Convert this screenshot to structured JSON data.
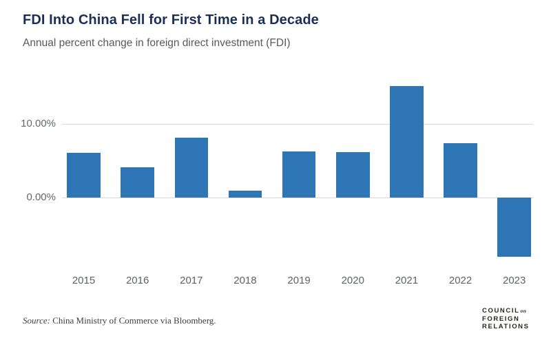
{
  "header": {
    "title": "FDI Into China Fell for First Time in a Decade",
    "subtitle": "Annual percent change in foreign direct investment (FDI)"
  },
  "chart_data": {
    "type": "bar",
    "title": "FDI Into China Fell for First Time in a Decade",
    "subtitle": "Annual percent change in foreign direct investment (FDI)",
    "categories": [
      "2015",
      "2016",
      "2017",
      "2018",
      "2019",
      "2020",
      "2021",
      "2022",
      "2023"
    ],
    "values": [
      6.1,
      4.1,
      8.1,
      0.9,
      6.3,
      6.2,
      15.1,
      7.4,
      -8.0
    ],
    "xlabel": "",
    "ylabel": "",
    "y_ticks": [
      {
        "value": 10,
        "label": "10.00%"
      },
      {
        "value": 0,
        "label": "0.00%"
      }
    ],
    "ylim": [
      -10,
      16.5
    ],
    "grid": "horizontal-at-ticks-only",
    "legend": "none",
    "bar_color": "#2e75b5",
    "gridline_color": "#d8d8d8"
  },
  "footer": {
    "source_label": "Source:",
    "source_text": " China Ministry of Commerce via Bloomberg.",
    "logo": {
      "line1": "COUNCIL",
      "line1_small": "on",
      "line2": "FOREIGN",
      "line3": "RELATIONS"
    }
  },
  "colors": {
    "title_navy": "#1b2e55",
    "subtitle_gray": "#55595e",
    "axis_label_gray": "#63676b",
    "bar_blue": "#2e75b5",
    "gridline_gray": "#d8d8d8",
    "logo_dark": "#2b2522"
  }
}
